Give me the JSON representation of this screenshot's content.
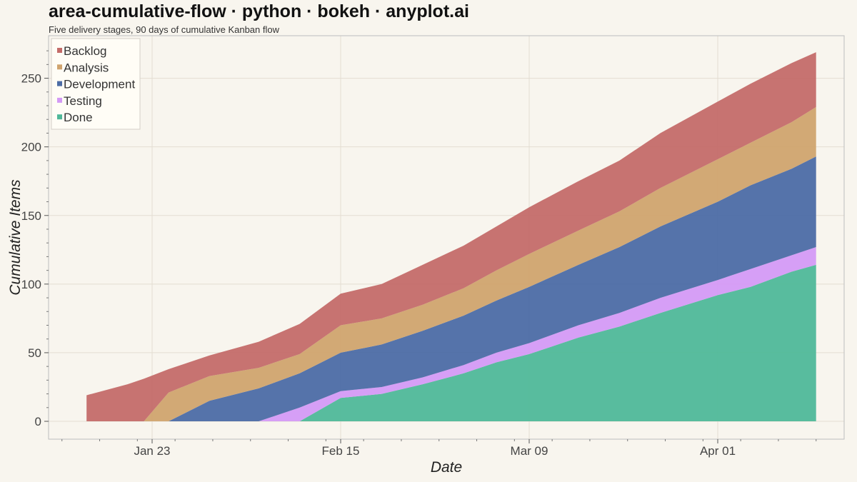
{
  "chart_data": {
    "type": "area",
    "stacked": true,
    "title": "area-cumulative-flow · python · bokeh · anyplot.ai",
    "subtitle": "Five delivery stages, 90 days of cumulative Kanban flow",
    "xlabel": "Date",
    "ylabel": "Cumulative Items",
    "x_ticks": [
      "Jan 23",
      "Feb 15",
      "Mar 09",
      "Apr 01"
    ],
    "y_ticks": [
      0,
      50,
      100,
      150,
      200,
      250
    ],
    "ylim": [
      -13,
      281
    ],
    "grid": true,
    "legend_position": "top-left",
    "x": [
      "2024-01-15",
      "2024-01-20",
      "2024-01-22",
      "2024-01-25",
      "2024-01-30",
      "2024-02-05",
      "2024-02-10",
      "2024-02-15",
      "2024-02-20",
      "2024-02-25",
      "2024-03-01",
      "2024-03-05",
      "2024-03-09",
      "2024-03-15",
      "2024-03-20",
      "2024-03-25",
      "2024-04-01",
      "2024-04-05",
      "2024-04-10",
      "2024-04-13"
    ],
    "series": [
      {
        "name": "Done",
        "color": "#4fb899",
        "values": [
          0,
          0,
          0,
          0,
          0,
          0,
          0,
          17,
          20,
          27,
          35,
          43,
          49,
          61,
          69,
          79,
          92,
          98,
          109,
          114
        ]
      },
      {
        "name": "Testing",
        "color": "#d49af5",
        "values": [
          0,
          0,
          0,
          0,
          0,
          0,
          10,
          5,
          5,
          5,
          6,
          7,
          8,
          9,
          10,
          11,
          11,
          13,
          12,
          13
        ]
      },
      {
        "name": "Development",
        "color": "#4c6ca5",
        "values": [
          0,
          0,
          0,
          0,
          15,
          24,
          25,
          28,
          31,
          34,
          36,
          38,
          41,
          44,
          48,
          52,
          57,
          61,
          63,
          66
        ]
      },
      {
        "name": "Analysis",
        "color": "#d0a46e",
        "values": [
          0,
          0,
          0,
          21,
          18,
          15,
          14,
          20,
          19,
          19,
          20,
          22,
          24,
          25,
          26,
          28,
          31,
          31,
          34,
          36
        ]
      },
      {
        "name": "Backlog",
        "color": "#c46c69",
        "values": [
          19,
          27,
          31,
          17,
          15,
          19,
          22,
          23,
          25,
          29,
          31,
          32,
          34,
          36,
          37,
          40,
          42,
          43,
          43,
          40
        ]
      }
    ],
    "legend_order": [
      "Backlog",
      "Analysis",
      "Development",
      "Testing",
      "Done"
    ]
  }
}
